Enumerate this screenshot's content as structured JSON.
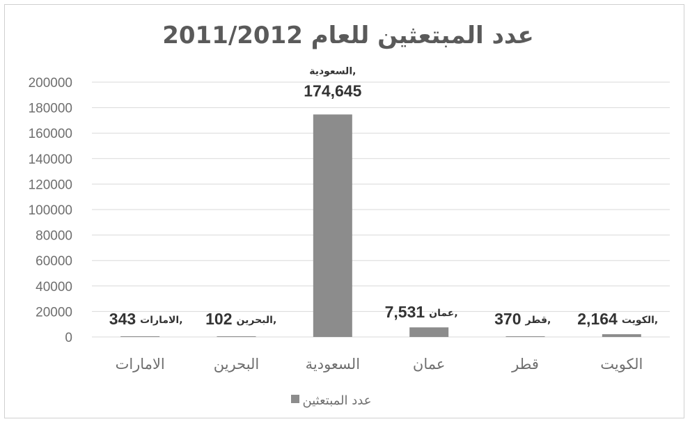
{
  "chart_data": {
    "type": "bar",
    "title": "عدد المبتعثين للعام 2011/2012",
    "categories": [
      "الامارات",
      "البحرين",
      "السعودية",
      "عمان",
      "قطر",
      "الكويت"
    ],
    "series": [
      {
        "name": "عدد المبتعثين",
        "values": [
          343,
          102,
          174645,
          7531,
          370,
          2164
        ],
        "data_labels": [
          "343",
          "102",
          "174,645",
          "7,531",
          "370",
          "2,164"
        ],
        "data_label_categories": [
          "الامارات,",
          "البحرين,",
          "السعودية,",
          "عمان,",
          "قطر,",
          "الكويت,"
        ]
      }
    ],
    "ylim": [
      0,
      200000
    ],
    "yticks": [
      "0",
      "20000",
      "40000",
      "60000",
      "80000",
      "100000",
      "120000",
      "140000",
      "160000",
      "180000",
      "200000"
    ],
    "ytick_values": [
      0,
      20000,
      40000,
      60000,
      80000,
      100000,
      120000,
      140000,
      160000,
      180000,
      200000
    ],
    "xlabel": "",
    "ylabel": "",
    "grid": true,
    "legend_position": "bottom",
    "colors": {
      "bar": "#8c8c8c",
      "grid": "#d9d9d9",
      "text": "#6e6e6e"
    }
  }
}
